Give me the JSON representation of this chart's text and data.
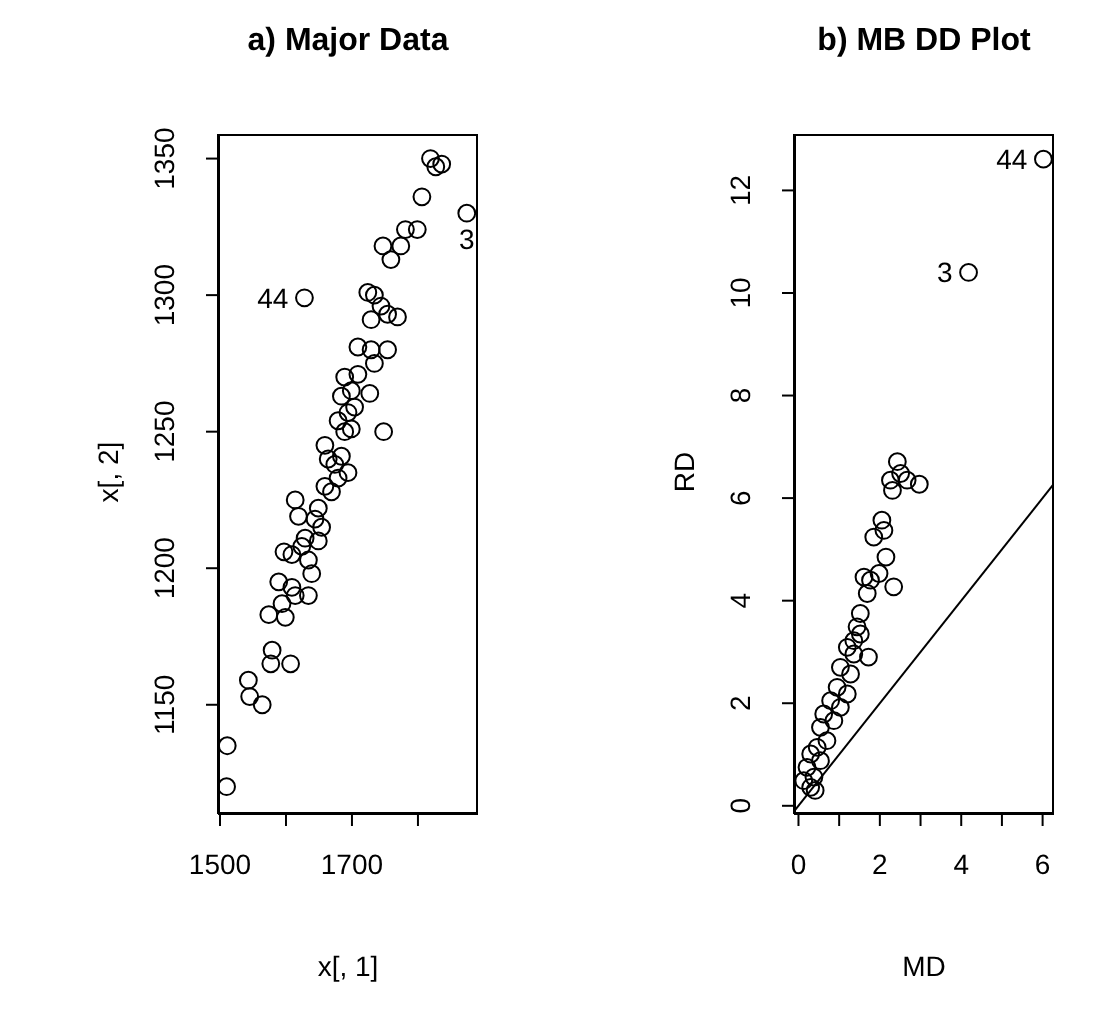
{
  "chart_data": [
    {
      "type": "scatter",
      "title": "a) Major Data",
      "xlabel": "x[, 1]",
      "ylabel": "x[, 2]",
      "xlim": [
        1497,
        1891
      ],
      "ylim": [
        1110,
        1359
      ],
      "xticks": [
        1500,
        {
          "value": 1600,
          "label": null
        },
        1700,
        {
          "value": 1800,
          "label": null
        }
      ],
      "yticks": [
        1150,
        1200,
        1250,
        1300,
        1350
      ],
      "marker": "circle",
      "grid": false,
      "legend": false,
      "series": [
        {
          "color": "#000000",
          "x": [
            1510,
            1511,
            1543,
            1545,
            1564,
            1579,
            1577,
            1607,
            1574,
            1599,
            1589,
            1594,
            1614,
            1634,
            1609,
            1597,
            1609,
            1624,
            1634,
            1639,
            1614,
            1619,
            1629,
            1644,
            1649,
            1654,
            1659,
            1669,
            1649,
            1659,
            1664,
            1674,
            1684,
            1694,
            1679,
            1689,
            1699,
            1679,
            1694,
            1704,
            1684,
            1699,
            1689,
            1709,
            1727,
            1748,
            1709,
            1729,
            1754,
            1734,
            1724,
            1734,
            1744,
            1754,
            1769,
            1729,
            1747,
            1759,
            1774,
            1781,
            1799,
            1806,
            1819,
            1827,
            1836,
            1874,
            1628
          ],
          "values": [
            1120,
            1135,
            1159,
            1153,
            1150,
            1170,
            1165,
            1165,
            1183,
            1182,
            1195,
            1187,
            1190,
            1190,
            1193,
            1206,
            1205,
            1208,
            1203,
            1198,
            1225,
            1219,
            1211,
            1218,
            1222,
            1215,
            1230,
            1228,
            1210,
            1245,
            1240,
            1238,
            1241,
            1235,
            1233,
            1250,
            1251,
            1254,
            1257,
            1259,
            1263,
            1265,
            1270,
            1271,
            1264,
            1250,
            1281,
            1280,
            1280,
            1275,
            1301,
            1300,
            1296,
            1293,
            1292,
            1291,
            1318,
            1313,
            1318,
            1324,
            1324,
            1336,
            1350,
            1347,
            1348,
            1330,
            1299
          ]
        }
      ],
      "annotations": [
        {
          "text": "44",
          "x": 1628,
          "y": 1299
        },
        {
          "text": "3",
          "x": 1874,
          "y": 1330
        }
      ]
    },
    {
      "type": "scatter",
      "title": "b) MB DD Plot",
      "xlabel": "MD",
      "ylabel": "RD",
      "xlim": [
        -0.11,
        6.28
      ],
      "ylim": [
        -0.16,
        13.1
      ],
      "xticks": [
        0,
        {
          "value": 1,
          "label": null
        },
        2,
        {
          "value": 3,
          "label": null
        },
        4,
        {
          "value": 5,
          "label": null
        },
        6
      ],
      "yticks": [
        0,
        2,
        4,
        6,
        8,
        10,
        12
      ],
      "marker": "circle",
      "grid": false,
      "legend": false,
      "series": [
        {
          "color": "#000000",
          "x": [
            6.02,
            4.18,
            2.43,
            2.26,
            2.51,
            2.67,
            2.97,
            2.31,
            2.05,
            2.1,
            1.85,
            2.15,
            2.34,
            1.98,
            1.77,
            1.69,
            1.61,
            1.52,
            1.44,
            1.36,
            1.2,
            1.72,
            1.03,
            1.28,
            0.95,
            1.2,
            0.79,
            1.03,
            0.62,
            0.87,
            0.54,
            0.7,
            0.46,
            0.3,
            0.54,
            0.21,
            0.38,
            0.13,
            0.41,
            0.3,
            1.36,
            1.52
          ],
          "values": [
            12.61,
            10.4,
            6.71,
            6.35,
            6.48,
            6.35,
            6.27,
            6.15,
            5.57,
            5.37,
            5.24,
            4.85,
            4.27,
            4.53,
            4.4,
            4.14,
            4.46,
            3.75,
            3.49,
            3.22,
            3.09,
            2.9,
            2.7,
            2.57,
            2.31,
            2.18,
            2.05,
            1.92,
            1.79,
            1.66,
            1.53,
            1.27,
            1.14,
            1.01,
            0.88,
            0.75,
            0.56,
            0.49,
            0.3,
            0.36,
            2.96,
            3.35
          ]
        },
        {
          "type": "line",
          "color": "#000000",
          "marker": "none",
          "line_style": "solid",
          "x": [
            -0.11,
            6.28
          ],
          "values": [
            -0.11,
            6.28
          ]
        }
      ],
      "annotations": [
        {
          "text": "44",
          "x": 6.02,
          "y": 12.61
        },
        {
          "text": "3",
          "x": 4.18,
          "y": 10.4
        }
      ]
    }
  ]
}
